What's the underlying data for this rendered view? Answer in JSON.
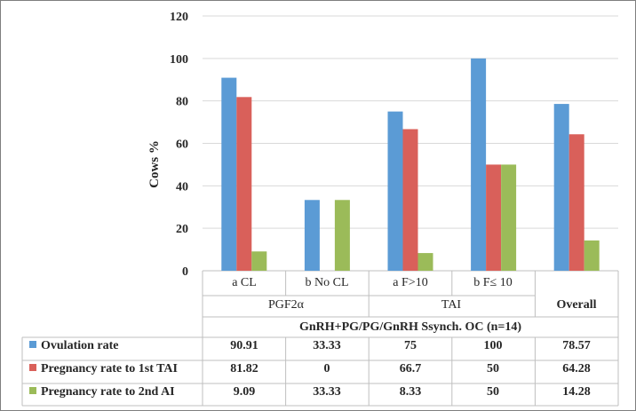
{
  "chart_data": {
    "type": "bar",
    "ylabel": "Cows %",
    "ylim": [
      0,
      120
    ],
    "yticks": [
      0,
      20,
      40,
      60,
      80,
      100,
      120
    ],
    "grid": true,
    "categories": [
      "a CL",
      "b No CL",
      "a F>10",
      "b F≤ 10",
      "Overall"
    ],
    "groups": [
      {
        "label": "PGF2α",
        "span": [
          0,
          1
        ]
      },
      {
        "label": "TAI",
        "span": [
          2,
          3
        ]
      },
      {
        "label": "Overall",
        "span": [
          4,
          4
        ]
      }
    ],
    "protocol_label": "GnRH+PG/PG/GnRH Ssynch. OC (n=14)",
    "series": [
      {
        "name": "Ovulation rate",
        "color": "#5b9bd5",
        "values": [
          90.91,
          33.33,
          75,
          100,
          78.57
        ],
        "labels": [
          "90.91",
          "33.33",
          "75",
          "100",
          "78.57"
        ]
      },
      {
        "name": "Pregnancy rate to 1st TAI",
        "color": "#d9605a",
        "values": [
          81.82,
          0,
          66.7,
          50,
          64.28
        ],
        "labels": [
          "81.82",
          "0",
          "66.7",
          "50",
          "64.28"
        ]
      },
      {
        "name": "Pregnancy rate to 2nd AI",
        "color": "#9bbb59",
        "values": [
          9.09,
          33.33,
          8.33,
          50,
          14.28
        ],
        "labels": [
          "9.09",
          "33.33",
          "8.33",
          "50",
          "14.28"
        ]
      }
    ]
  }
}
